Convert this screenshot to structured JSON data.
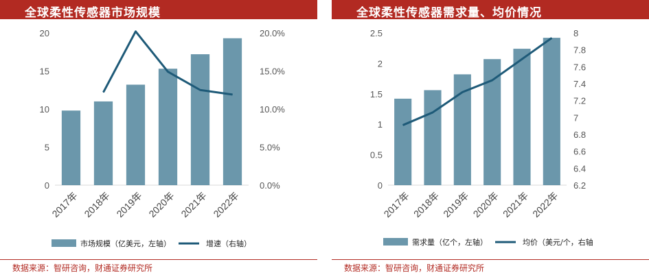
{
  "charts": [
    {
      "title": "全球柔性传感器市场规模",
      "source": "数据来源：智研咨询，财通证券研究所",
      "chart_data": {
        "type": "bar",
        "categories": [
          "2017年",
          "2018年",
          "2019年",
          "2020年",
          "2021年",
          "2022年"
        ],
        "series": [
          {
            "name": "市场规模（亿美元，左轴）",
            "kind": "bar",
            "axis": "left",
            "values": [
              9.8,
              11.0,
              13.2,
              15.3,
              17.2,
              19.3
            ]
          },
          {
            "name": "增速（右轴）",
            "kind": "line",
            "axis": "right",
            "values": [
              null,
              12.2,
              20.2,
              14.9,
              12.5,
              11.9
            ]
          }
        ],
        "left_axis": {
          "min": 0,
          "max": 20,
          "ticks": [
            "0",
            "5",
            "10",
            "15",
            "20"
          ]
        },
        "right_axis": {
          "min": 0,
          "max": 20,
          "ticks": [
            "0.0%",
            "5.0%",
            "10.0%",
            "15.0%",
            "20.0%"
          ]
        },
        "legend_position": "bottom",
        "grid": false
      }
    },
    {
      "title": "全球柔性传感器需求量、均价情况",
      "source": "数据来源：智研咨询，财通证券研究所",
      "chart_data": {
        "type": "bar",
        "categories": [
          "2017年",
          "2018年",
          "2019年",
          "2020年",
          "2021年",
          "2022年"
        ],
        "series": [
          {
            "name": "需求量（亿个，左轴）",
            "kind": "bar",
            "axis": "left",
            "values": [
              1.42,
              1.56,
              1.82,
              2.07,
              2.24,
              2.42
            ]
          },
          {
            "name": "均价（美元/个，右轴",
            "kind": "line",
            "axis": "right",
            "values": [
              6.91,
              7.06,
              7.3,
              7.44,
              7.69,
              7.94
            ]
          }
        ],
        "left_axis": {
          "min": 0,
          "max": 2.5,
          "ticks": [
            "0",
            "0.5",
            "1",
            "1.5",
            "2",
            "2.5"
          ]
        },
        "right_axis": {
          "min": 6.2,
          "max": 8,
          "ticks": [
            "6.2",
            "6.4",
            "6.6",
            "6.8",
            "7",
            "7.2",
            "7.4",
            "7.6",
            "7.8",
            "8"
          ]
        },
        "legend_position": "bottom",
        "grid": false
      }
    }
  ],
  "colors": {
    "bar": "#6b97ab",
    "line": "#1e5a78",
    "title_bg": "#b22a22",
    "source_text": "#b22a22"
  }
}
